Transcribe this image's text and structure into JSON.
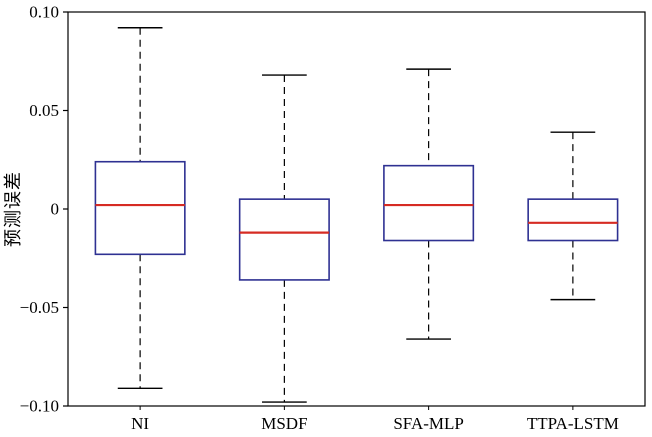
{
  "chart_data": {
    "type": "boxplot",
    "title": "",
    "ylabel": "预测误差",
    "xlabel": "",
    "categories": [
      "NI",
      "MSDF",
      "SFA-MLP",
      "TTPA-LSTM"
    ],
    "ylim": [
      -0.1,
      0.1
    ],
    "yticks": [
      -0.1,
      -0.05,
      0,
      0.05,
      0.1
    ],
    "ytick_labels": [
      "−0.10",
      "−0.05",
      "0",
      "0.05",
      "0.10"
    ],
    "grid": false,
    "legend": "none",
    "colors": {
      "box": "#2e3192",
      "median": "#d62b23",
      "whisker": "#000000",
      "frame": "#000000"
    },
    "series": [
      {
        "name": "NI",
        "whisker_low": -0.091,
        "q1": -0.023,
        "median": 0.002,
        "q3": 0.024,
        "whisker_high": 0.092
      },
      {
        "name": "MSDF",
        "whisker_low": -0.098,
        "q1": -0.036,
        "median": -0.012,
        "q3": 0.005,
        "whisker_high": 0.068
      },
      {
        "name": "SFA-MLP",
        "whisker_low": -0.066,
        "q1": -0.016,
        "median": 0.002,
        "q3": 0.022,
        "whisker_high": 0.071
      },
      {
        "name": "TTPA-LSTM",
        "whisker_low": -0.046,
        "q1": -0.016,
        "median": -0.007,
        "q3": 0.005,
        "whisker_high": 0.039
      }
    ]
  }
}
